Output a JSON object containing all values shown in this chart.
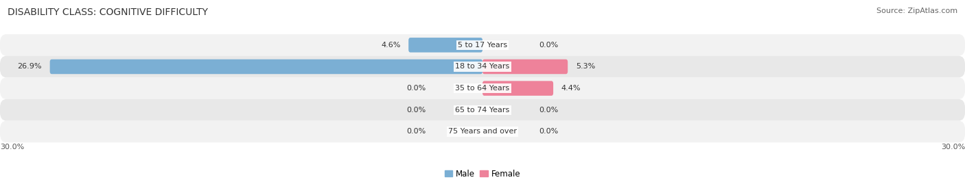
{
  "title": "DISABILITY CLASS: COGNITIVE DIFFICULTY",
  "source": "Source: ZipAtlas.com",
  "categories": [
    "5 to 17 Years",
    "18 to 34 Years",
    "35 to 64 Years",
    "65 to 74 Years",
    "75 Years and over"
  ],
  "male_values": [
    4.6,
    26.9,
    0.0,
    0.0,
    0.0
  ],
  "female_values": [
    0.0,
    5.3,
    4.4,
    0.0,
    0.0
  ],
  "male_color": "#7bafd4",
  "female_color": "#ee829a",
  "row_bg_even": "#f2f2f2",
  "row_bg_odd": "#e8e8e8",
  "max_val": 30.0,
  "x_left_label": "30.0%",
  "x_right_label": "30.0%",
  "title_fontsize": 10,
  "source_fontsize": 8,
  "label_fontsize": 8,
  "cat_fontsize": 8,
  "axis_fontsize": 8,
  "figsize": [
    14.06,
    2.69
  ],
  "dpi": 100
}
